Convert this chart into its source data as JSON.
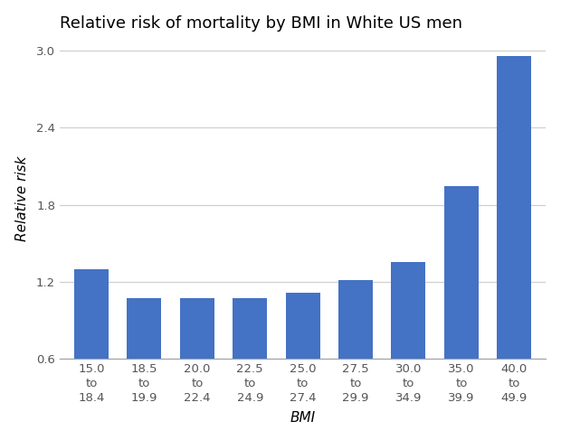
{
  "title": "Relative risk of mortality by BMI in White US men",
  "xlabel": "BMI",
  "ylabel": "Relative risk",
  "categories": [
    "15.0\nto\n18.4",
    "18.5\nto\n19.9",
    "20.0\nto\n22.4",
    "22.5\nto\n24.9",
    "25.0\nto\n27.4",
    "27.5\nto\n29.9",
    "30.0\nto\n34.9",
    "35.0\nto\n39.9",
    "40.0\nto\n49.9"
  ],
  "values": [
    1.295,
    1.075,
    1.07,
    1.07,
    1.115,
    1.215,
    1.355,
    1.945,
    2.96
  ],
  "bar_color": "#4472c4",
  "ylim": [
    0.6,
    3.1
  ],
  "yticks": [
    0.6,
    1.2,
    1.8,
    2.4,
    3.0
  ],
  "background_color": "#ffffff",
  "grid_color": "#d0d0d0",
  "title_fontsize": 13,
  "axis_label_fontsize": 11,
  "tick_fontsize": 9.5
}
